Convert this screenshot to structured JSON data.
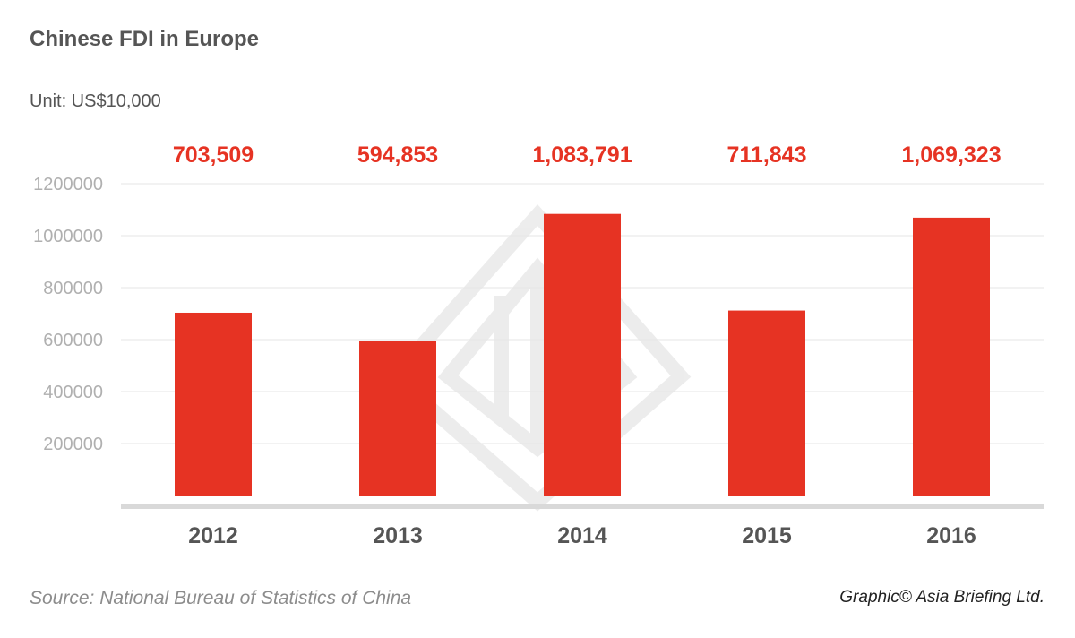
{
  "chart_data": {
    "type": "bar",
    "title": "Chinese FDI in Europe",
    "unit": "Unit: US$10,000",
    "categories": [
      "2012",
      "2013",
      "2014",
      "2015",
      "2016"
    ],
    "values": [
      703509,
      594853,
      1083791,
      711843,
      1069323
    ],
    "value_labels": [
      "703,509",
      "594,853",
      "1,083,791",
      "711,843",
      "1,069,323"
    ],
    "yticks": [
      "200000",
      "400000",
      "600000",
      "800000",
      "1000000",
      "1200000"
    ],
    "ylim": [
      0,
      1200000
    ],
    "grid": true,
    "bar_color": "#e63323",
    "label_color": "#e63323"
  },
  "footer": {
    "source": "Source: National Bureau of Statistics of China",
    "credit": "Graphic© Asia Briefing Ltd."
  }
}
